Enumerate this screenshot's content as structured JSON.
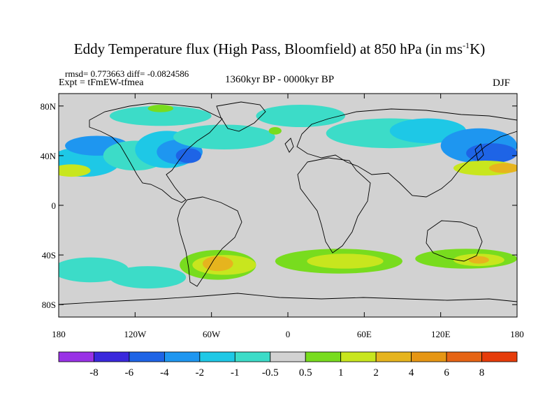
{
  "title": {
    "main": "Eddy Temperature flux (High Pass, Bloomfield) at 850 hPa (in ms",
    "sup": "-1",
    "end": "K)"
  },
  "stats": "rmsd= 0.773663 diff= -0.0824586",
  "expt": "Expt = tFmEW-tfmea",
  "period": "1360kyr BP - 0000kyr BP",
  "season": "DJF",
  "axes": {
    "lat_ticks": [
      {
        "label": "80N",
        "lat": 80
      },
      {
        "label": "40N",
        "lat": 40
      },
      {
        "label": "0",
        "lat": 0
      },
      {
        "label": "40S",
        "lat": -40
      },
      {
        "label": "80S",
        "lat": -80
      }
    ],
    "lon_ticks": [
      {
        "label": "180",
        "lon": -180
      },
      {
        "label": "120W",
        "lon": -120
      },
      {
        "label": "60W",
        "lon": -60
      },
      {
        "label": "0",
        "lon": 0
      },
      {
        "label": "60E",
        "lon": 60
      },
      {
        "label": "120E",
        "lon": 120
      },
      {
        "label": "180",
        "lon": 180
      }
    ]
  },
  "legend": {
    "colors": [
      "#9932e6",
      "#3a28dc",
      "#1e64e6",
      "#1e96f0",
      "#1ec8e6",
      "#3cdcc8",
      "#d2d2d2",
      "#78dc1e",
      "#c8e61e",
      "#e6b41e",
      "#e69614",
      "#e66414",
      "#e63c0a"
    ],
    "labels": [
      "-8",
      "-6",
      "-4",
      "-2",
      "-1",
      "-0.5",
      "0.5",
      "1",
      "2",
      "4",
      "6",
      "8"
    ]
  },
  "field": {
    "background": "#d2d2d2",
    "blobs": [
      {
        "lon": -160,
        "lat": 35,
        "rx": 28,
        "ry": 12,
        "color": "#1ec8e6"
      },
      {
        "lon": -150,
        "lat": 48,
        "rx": 25,
        "ry": 8,
        "color": "#1e96f0"
      },
      {
        "lon": -120,
        "lat": 40,
        "rx": 25,
        "ry": 12,
        "color": "#3cdcc8"
      },
      {
        "lon": -95,
        "lat": 45,
        "rx": 25,
        "ry": 15,
        "color": "#1ec8e6"
      },
      {
        "lon": -85,
        "lat": 43,
        "rx": 18,
        "ry": 10,
        "color": "#1e96f0"
      },
      {
        "lon": -78,
        "lat": 40,
        "rx": 10,
        "ry": 6,
        "color": "#1e64e6"
      },
      {
        "lon": -50,
        "lat": 55,
        "rx": 40,
        "ry": 10,
        "color": "#3cdcc8"
      },
      {
        "lon": -100,
        "lat": 72,
        "rx": 40,
        "ry": 8,
        "color": "#3cdcc8"
      },
      {
        "lon": 10,
        "lat": 72,
        "rx": 35,
        "ry": 9,
        "color": "#3cdcc8"
      },
      {
        "lon": 80,
        "lat": 58,
        "rx": 50,
        "ry": 12,
        "color": "#3cdcc8"
      },
      {
        "lon": 110,
        "lat": 60,
        "rx": 30,
        "ry": 10,
        "color": "#1ec8e6"
      },
      {
        "lon": 150,
        "lat": 48,
        "rx": 30,
        "ry": 14,
        "color": "#1e96f0"
      },
      {
        "lon": 160,
        "lat": 42,
        "rx": 20,
        "ry": 8,
        "color": "#1e64e6"
      },
      {
        "lon": -155,
        "lat": -52,
        "rx": 30,
        "ry": 10,
        "color": "#3cdcc8"
      },
      {
        "lon": -110,
        "lat": -58,
        "rx": 30,
        "ry": 9,
        "color": "#3cdcc8"
      },
      {
        "lon": -170,
        "lat": 28,
        "rx": 15,
        "ry": 5,
        "color": "#c8e61e"
      },
      {
        "lon": 155,
        "lat": 30,
        "rx": 25,
        "ry": 6,
        "color": "#c8e61e"
      },
      {
        "lon": 170,
        "lat": 30,
        "rx": 12,
        "ry": 4,
        "color": "#e6b41e"
      },
      {
        "lon": -100,
        "lat": 78,
        "rx": 10,
        "ry": 3,
        "color": "#78dc1e"
      },
      {
        "lon": -10,
        "lat": 60,
        "rx": 5,
        "ry": 3,
        "color": "#78dc1e"
      },
      {
        "lon": -55,
        "lat": -48,
        "rx": 30,
        "ry": 12,
        "color": "#78dc1e"
      },
      {
        "lon": -50,
        "lat": -48,
        "rx": 25,
        "ry": 8,
        "color": "#c8e61e"
      },
      {
        "lon": -55,
        "lat": -47,
        "rx": 12,
        "ry": 6,
        "color": "#e6b41e"
      },
      {
        "lon": 40,
        "lat": -45,
        "rx": 50,
        "ry": 10,
        "color": "#78dc1e"
      },
      {
        "lon": 45,
        "lat": -45,
        "rx": 30,
        "ry": 6,
        "color": "#c8e61e"
      },
      {
        "lon": 140,
        "lat": -43,
        "rx": 40,
        "ry": 8,
        "color": "#78dc1e"
      },
      {
        "lon": 150,
        "lat": -44,
        "rx": 20,
        "ry": 5,
        "color": "#c8e61e"
      },
      {
        "lon": 150,
        "lat": -44,
        "rx": 8,
        "ry": 3,
        "color": "#e6b41e"
      }
    ]
  }
}
